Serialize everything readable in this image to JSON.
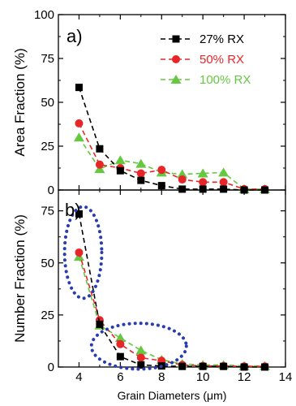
{
  "chart_data": [
    {
      "type": "line",
      "panel_label": "a)",
      "ylabel": "Area Fraction (%)",
      "xlabel": "",
      "ylim": [
        0,
        100
      ],
      "xlim": [
        3,
        14
      ],
      "yticks": [
        0,
        25,
        50,
        75,
        100
      ],
      "legend": "top-right",
      "series": [
        {
          "name": "27% RX",
          "color": "#000000",
          "marker": "square",
          "x": [
            4,
            5,
            6,
            7,
            8,
            9,
            10,
            11,
            12,
            13
          ],
          "y": [
            58.5,
            23.5,
            11,
            5.5,
            2.5,
            0.5,
            0.5,
            0.5,
            0,
            0
          ]
        },
        {
          "name": "50% RX",
          "color": "#e8262a",
          "marker": "circle",
          "x": [
            4,
            5,
            6,
            7,
            8,
            9,
            10,
            11,
            12,
            13
          ],
          "y": [
            38,
            14.5,
            12.5,
            9.5,
            11.5,
            6,
            4.5,
            4.5,
            0.5,
            0.5
          ]
        },
        {
          "name": "100% RX",
          "color": "#66c740",
          "marker": "triangle",
          "x": [
            4,
            5,
            6,
            7,
            8,
            9,
            10,
            11,
            12,
            13
          ],
          "y": [
            30,
            12,
            17,
            15,
            10,
            9,
            9.5,
            10,
            0.5,
            0.5
          ]
        }
      ]
    },
    {
      "type": "line",
      "panel_label": "b)",
      "ylabel": "Number Fraction (%)",
      "xlabel": "Grain Diameters (μm)",
      "ylim": [
        0,
        85
      ],
      "xlim": [
        3,
        14
      ],
      "yticks": [
        0,
        25,
        50,
        75
      ],
      "xticks": [
        4,
        6,
        8,
        10,
        12,
        14
      ],
      "series": [
        {
          "name": "27% RX",
          "color": "#000000",
          "marker": "square",
          "x": [
            4,
            5,
            6,
            7,
            8,
            9,
            10,
            11,
            12,
            13
          ],
          "y": [
            73.5,
            20.5,
            5,
            1,
            0.5,
            0.3,
            0.3,
            0.3,
            0,
            0
          ]
        },
        {
          "name": "50% RX",
          "color": "#e8262a",
          "marker": "circle",
          "x": [
            4,
            5,
            6,
            7,
            8,
            9,
            10,
            11,
            12,
            13
          ],
          "y": [
            55,
            22.5,
            11,
            4.5,
            3,
            1,
            0.5,
            0.5,
            0.3,
            0.3
          ]
        },
        {
          "name": "100% RX",
          "color": "#66c740",
          "marker": "triangle",
          "x": [
            4,
            5,
            6,
            7,
            8,
            9,
            10,
            11,
            12,
            13
          ],
          "y": [
            53,
            20,
            14,
            8,
            3.5,
            1.5,
            1,
            1,
            0.5,
            0.5
          ]
        }
      ],
      "annotations": [
        {
          "shape": "ellipse",
          "style": "dotted",
          "color": "#2a3db0",
          "cx": 4.2,
          "cy": 55,
          "rx": 0.9,
          "ry": 22
        },
        {
          "shape": "ellipse",
          "style": "dotted",
          "color": "#2a3db0",
          "cx": 6.9,
          "cy": 10,
          "rx": 2.3,
          "ry": 11
        }
      ]
    }
  ]
}
